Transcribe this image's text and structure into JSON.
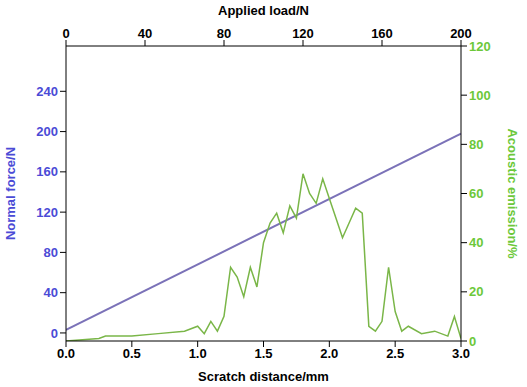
{
  "chart_data": {
    "type": "line",
    "x_label": "Scratch distance/mm",
    "x2_label": "Applied load/N",
    "y_label": "Normal force/N",
    "y2_label": "Acoustic emission/%",
    "xlim": [
      0,
      3
    ],
    "xticks": [
      {
        "value": 0,
        "label": "0.0"
      },
      {
        "value": 0.5,
        "label": "0.5"
      },
      {
        "value": 1,
        "label": "1.0"
      },
      {
        "value": 1.5,
        "label": "1.5"
      },
      {
        "value": 2,
        "label": "2.0"
      },
      {
        "value": 2.5,
        "label": "2.5"
      },
      {
        "value": 3,
        "label": "3.0"
      }
    ],
    "x2lim": [
      0,
      200
    ],
    "x2ticks": [
      0,
      40,
      80,
      120,
      160,
      200
    ],
    "ylim": [
      -8,
      285
    ],
    "yticks": [
      0,
      40,
      80,
      120,
      160,
      200,
      240
    ],
    "y2lim": [
      0,
      120
    ],
    "y2ticks": [
      0,
      20,
      40,
      60,
      80,
      100,
      120
    ],
    "grid": false,
    "series": [
      {
        "color": "#7b72b8",
        "x": [
          0,
          3
        ],
        "values": [
          3,
          198
        ]
      },
      {
        "color": "#7ab648",
        "axis": "y2",
        "x": [
          0,
          0.25,
          0.3,
          0.5,
          0.7,
          0.9,
          1.0,
          1.05,
          1.1,
          1.15,
          1.2,
          1.25,
          1.3,
          1.35,
          1.4,
          1.45,
          1.5,
          1.55,
          1.6,
          1.65,
          1.7,
          1.75,
          1.8,
          1.85,
          1.9,
          1.95,
          2.0,
          2.05,
          2.1,
          2.15,
          2.2,
          2.25,
          2.3,
          2.35,
          2.4,
          2.45,
          2.5,
          2.55,
          2.6,
          2.7,
          2.8,
          2.9,
          2.95,
          3.0
        ],
        "values": [
          0,
          1,
          2,
          2,
          3,
          4,
          6,
          3,
          8,
          4,
          10,
          30,
          26,
          18,
          30,
          22,
          40,
          48,
          52,
          44,
          55,
          50,
          68,
          60,
          56,
          66,
          58,
          50,
          42,
          48,
          54,
          52,
          6,
          4,
          8,
          30,
          12,
          4,
          6,
          3,
          4,
          2,
          10,
          1
        ]
      }
    ]
  }
}
